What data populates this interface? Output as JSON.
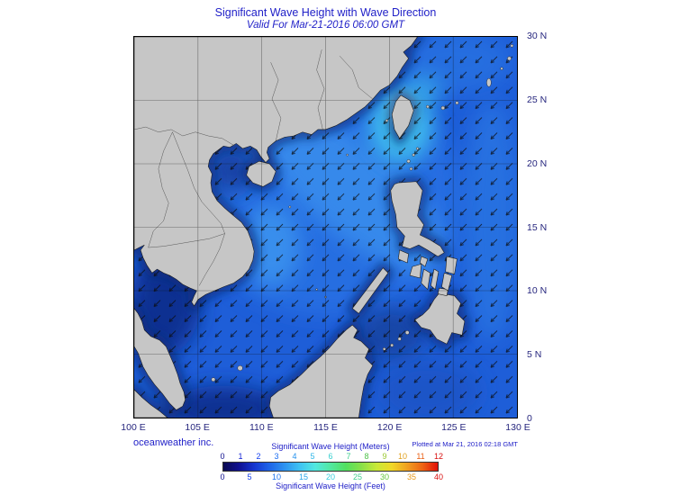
{
  "header": {
    "title": "Significant Wave Height with Wave Direction",
    "subtitle": "Valid For Mar-21-2016 06:00 GMT"
  },
  "axes": {
    "lon": [
      "100 E",
      "105 E",
      "110 E",
      "115 E",
      "120 E",
      "125 E",
      "130 E"
    ],
    "lat": [
      "30 N",
      "25 N",
      "20 N",
      "15 N",
      "10 N",
      "5 N",
      "0"
    ]
  },
  "footer": {
    "credit": "oceanweather inc.",
    "plotted": "Plotted at Mar 21, 2016 02:18 GMT"
  },
  "map_colors": {
    "land": "#c6c6c6",
    "ocean_base": "#1e5ed8",
    "high_wave_cyan": "#8feef8",
    "low_wave_navy": "#0b2a78"
  },
  "colorbar": {
    "meters_label": "Significant Wave Height (Meters)",
    "feet_label": "Significant Wave Height (Feet)",
    "meters_ticks": [
      {
        "label": "0",
        "color": "#0b0b8c"
      },
      {
        "label": "1",
        "color": "#0f1fd4"
      },
      {
        "label": "2",
        "color": "#1440f0"
      },
      {
        "label": "3",
        "color": "#1b6cf0"
      },
      {
        "label": "4",
        "color": "#2492ee"
      },
      {
        "label": "5",
        "color": "#2fb6e8"
      },
      {
        "label": "6",
        "color": "#35cfcf"
      },
      {
        "label": "7",
        "color": "#3fcf8f"
      },
      {
        "label": "8",
        "color": "#4ec24b"
      },
      {
        "label": "9",
        "color": "#9ac832"
      },
      {
        "label": "10",
        "color": "#e0a01e"
      },
      {
        "label": "11",
        "color": "#e95e12"
      },
      {
        "label": "12",
        "color": "#d80f0f"
      }
    ],
    "feet_ticks": [
      {
        "label": "0",
        "color": "#0b0b8c"
      },
      {
        "label": "5",
        "color": "#143fe8"
      },
      {
        "label": "10",
        "color": "#1e74ee"
      },
      {
        "label": "15",
        "color": "#2aa4ea"
      },
      {
        "label": "20",
        "color": "#38cede"
      },
      {
        "label": "25",
        "color": "#44cf90"
      },
      {
        "label": "30",
        "color": "#63c63e"
      },
      {
        "label": "35",
        "color": "#e89a1c"
      },
      {
        "label": "40",
        "color": "#d80f0f"
      }
    ],
    "gradient": [
      "#0a0a50",
      "#101090",
      "#1535d0",
      "#1e64e8",
      "#2e93f0",
      "#3fc3f2",
      "#52e8e0",
      "#52e8a0",
      "#52e060",
      "#88e048",
      "#c8e838",
      "#f0d828",
      "#f0a020",
      "#ee6414",
      "#e01008"
    ]
  },
  "chart_data": {
    "type": "heatmap",
    "title": "Significant Wave Height with Wave Direction",
    "subtitle": "Valid For Mar-21-2016 06:00 GMT",
    "x": {
      "ticks": [
        "100 E",
        "105 E",
        "110 E",
        "115 E",
        "120 E",
        "125 E",
        "130 E"
      ],
      "range": [
        100,
        130
      ]
    },
    "y": {
      "ticks": [
        "0",
        "5 N",
        "10 N",
        "15 N",
        "20 N",
        "25 N",
        "30 N"
      ],
      "range": [
        0,
        30
      ]
    },
    "colorscale_meters": [
      0,
      1,
      2,
      3,
      4,
      5,
      6,
      7,
      8,
      9,
      10,
      11,
      12
    ],
    "colorscale_feet": [
      0,
      5,
      10,
      15,
      20,
      25,
      30,
      35,
      40
    ],
    "overlay": "wave direction arrows pointing generally southwest",
    "approx_values_m": {
      "luzon_strait_taiwan_area": 4,
      "central_south_china_sea": 2.5,
      "gulf_of_tonkin": 1,
      "gulf_of_thailand": 1,
      "western_pacific": 2
    }
  }
}
